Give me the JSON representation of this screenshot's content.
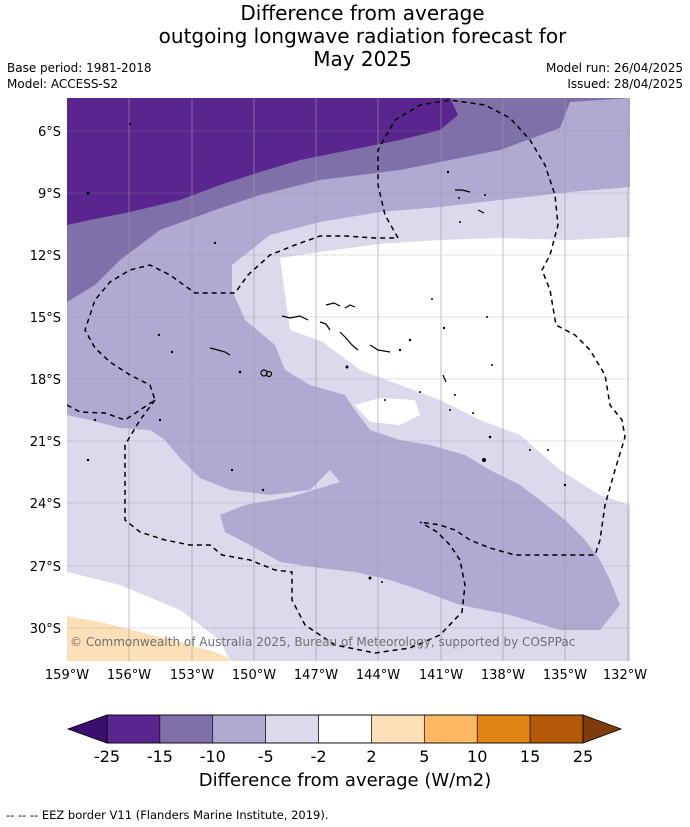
{
  "title_lines": [
    "Difference from average",
    "outgoing longwave radiation forecast for",
    "May 2025"
  ],
  "base_period": "Base period: 1981-2018",
  "model": "Model: ACCESS-S2",
  "model_run": "Model run: 26/04/2025",
  "issued": "Issued: 28/04/2025",
  "copyright": "© Commonwealth of Australia 2025, Bureau of Meteorology, supported by COSPPac",
  "lat_labels": [
    "6°S",
    "9°S",
    "12°S",
    "15°S",
    "18°S",
    "21°S",
    "24°S",
    "27°S",
    "30°S"
  ],
  "lon_labels": [
    "159°W",
    "156°W",
    "153°W",
    "150°W",
    "147°W",
    "144°W",
    "141°W",
    "138°W",
    "135°W",
    "132°W"
  ],
  "colorbar": {
    "label": "Difference from average (W/m2)",
    "ticks": [
      "-25",
      "-15",
      "-10",
      "-5",
      "-2",
      "2",
      "5",
      "10",
      "15",
      "25"
    ],
    "colors": [
      "#3b0f6f",
      "#5b2590",
      "#8070aa",
      "#b0aad3",
      "#dadaec",
      "#ffffff",
      "#fde0b8",
      "#fdb863",
      "#e08214",
      "#b35806",
      "#7f3b08"
    ]
  },
  "footnote": "--  --  -- EEZ border V11 (Flanders Marine Institute, 2019)."
}
